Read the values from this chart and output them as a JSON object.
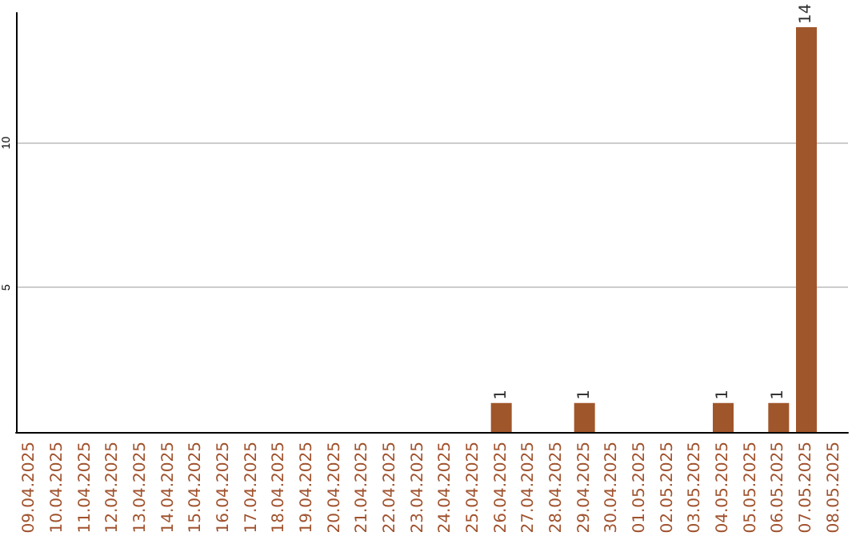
{
  "chart_data": {
    "type": "bar",
    "categories": [
      "09.04.2025",
      "10.04.2025",
      "11.04.2025",
      "12.04.2025",
      "13.04.2025",
      "14.04.2025",
      "15.04.2025",
      "16.04.2025",
      "17.04.2025",
      "18.04.2025",
      "19.04.2025",
      "20.04.2025",
      "21.04.2025",
      "22.04.2025",
      "23.04.2025",
      "24.04.2025",
      "25.04.2025",
      "26.04.2025",
      "27.04.2025",
      "28.04.2025",
      "29.04.2025",
      "30.04.2025",
      "01.05.2025",
      "02.05.2025",
      "03.05.2025",
      "04.05.2025",
      "05.05.2025",
      "06.05.2025",
      "07.05.2025",
      "08.05.2025"
    ],
    "values": [
      0,
      0,
      0,
      0,
      0,
      0,
      0,
      0,
      0,
      0,
      0,
      0,
      0,
      0,
      0,
      0,
      0,
      1,
      0,
      0,
      1,
      0,
      0,
      0,
      0,
      1,
      0,
      1,
      14,
      0
    ],
    "value_labels": [
      null,
      null,
      null,
      null,
      null,
      null,
      null,
      null,
      null,
      null,
      null,
      null,
      null,
      null,
      null,
      null,
      null,
      "1",
      null,
      null,
      "1",
      null,
      null,
      null,
      null,
      "1",
      null,
      "1",
      "14",
      null
    ],
    "color": "#a0562b",
    "ylim": [
      0,
      14.5
    ],
    "yticks": [
      5,
      10
    ],
    "grid": "y"
  }
}
